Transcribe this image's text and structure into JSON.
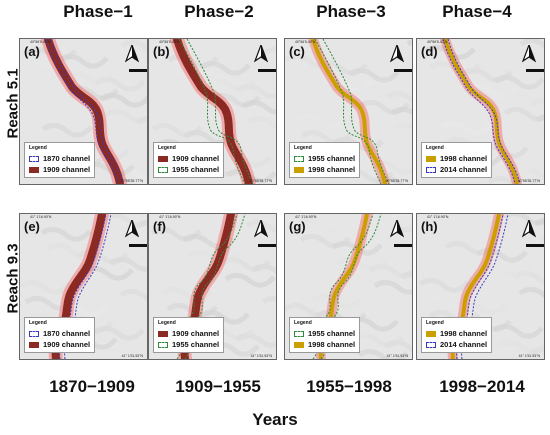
{
  "phase_titles": [
    "Phase−1",
    "Phase−2",
    "Phase−3",
    "Phase−4"
  ],
  "reach_labels": [
    "Reach 5.1",
    "Reach 9.3"
  ],
  "period_labels": [
    "1870−1909",
    "1909−1955",
    "1955−1998",
    "1998−2014"
  ],
  "x_axis_title": "Years",
  "legend_title": "Legend",
  "colors": {
    "channel_1870": "#3a3ac0",
    "channel_1909": "#8b2a22",
    "channel_1955": "#2f8a3a",
    "channel_1998": "#c9a000",
    "channel_2014": "#3a3ac0",
    "buffer_red": "#ff3b3b"
  },
  "coords": {
    "r1_top": "40°56'5.43\"N",
    "r1_left": "18°50'56.95\"E",
    "r1_bottom": "40°55'35.77\"N",
    "r1_right": "18°51'31.55\"E",
    "r2_top": "41° 1'16.90\"N",
    "r2_left": "18°51'53.27\"E",
    "r2_bottom": "41° 1'51.53\"N",
    "r2_right": "18°52'22.44\"E"
  },
  "panels": [
    {
      "letter": "(a)",
      "legend": [
        {
          "label": "1870 channel",
          "style": "dash",
          "color": "#3a3ac0"
        },
        {
          "label": "1909 channel",
          "style": "solid",
          "color": "#8b2a22"
        }
      ]
    },
    {
      "letter": "(b)",
      "legend": [
        {
          "label": "1909 channel",
          "style": "solid",
          "color": "#8b2a22"
        },
        {
          "label": "1955 channel",
          "style": "dash",
          "color": "#2f8a3a"
        }
      ]
    },
    {
      "letter": "(c)",
      "legend": [
        {
          "label": "1955 channel",
          "style": "dash",
          "color": "#2f8a3a"
        },
        {
          "label": "1998 channel",
          "style": "solid",
          "color": "#c9a000"
        }
      ]
    },
    {
      "letter": "(d)",
      "legend": [
        {
          "label": "1998 channel",
          "style": "solid",
          "color": "#c9a000"
        },
        {
          "label": "2014 channel",
          "style": "dash",
          "color": "#3a3ac0"
        }
      ]
    },
    {
      "letter": "(e)",
      "legend": [
        {
          "label": "1870 channel",
          "style": "dash",
          "color": "#3a3ac0"
        },
        {
          "label": "1909 channel",
          "style": "solid",
          "color": "#8b2a22"
        }
      ]
    },
    {
      "letter": "(f)",
      "legend": [
        {
          "label": "1909 channel",
          "style": "solid",
          "color": "#8b2a22"
        },
        {
          "label": "1955 channel",
          "style": "dash",
          "color": "#2f8a3a"
        }
      ]
    },
    {
      "letter": "(g)",
      "legend": [
        {
          "label": "1955 channel",
          "style": "dash",
          "color": "#2f8a3a"
        },
        {
          "label": "1998 channel",
          "style": "solid",
          "color": "#c9a000"
        }
      ]
    },
    {
      "letter": "(h)",
      "legend": [
        {
          "label": "1998 channel",
          "style": "solid",
          "color": "#c9a000"
        },
        {
          "label": "2014 channel",
          "style": "dash",
          "color": "#3a3ac0"
        }
      ]
    }
  ]
}
